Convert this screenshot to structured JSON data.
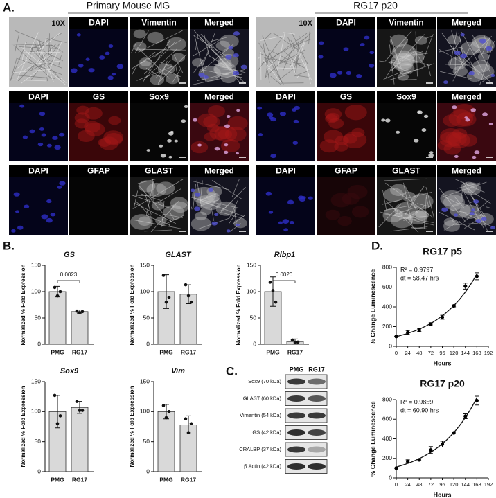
{
  "panel_a": {
    "label": "A.",
    "groups": [
      {
        "title": "Primary Mouse MG",
        "rows": [
          [
            "10X",
            "DAPI",
            "Vimentin",
            "Merged"
          ],
          [
            "DAPI",
            "GS",
            "Sox9",
            "Merged"
          ],
          [
            "DAPI",
            "GFAP",
            "GLAST",
            "Merged"
          ]
        ]
      },
      {
        "title": "RG17 p20",
        "rows": [
          [
            "10X",
            "DAPI",
            "Vimentin",
            "Merged"
          ],
          [
            "DAPI",
            "GS",
            "Sox9",
            "Merged"
          ],
          [
            "DAPI",
            "GFAP",
            "GLAST",
            "Merged"
          ]
        ]
      }
    ]
  },
  "panel_b": {
    "label": "B."
  },
  "western_blot": {
    "label": "C.",
    "columns": [
      "PMG",
      "RG17"
    ],
    "rows": [
      "Sox9 (70 kDa)",
      "GLAST (60 kDa)",
      "Vimentin (54 kDa)",
      "GS (42 kDa)",
      "CRALBP (37 kDa)",
      "β Actin (42 kDa)"
    ]
  },
  "panel_d": {
    "label": "D."
  },
  "chart_data": [
    {
      "type": "bar",
      "title": "GS",
      "ylabel": "Normalized % Fold Expression",
      "categories": [
        "PMG",
        "RG17"
      ],
      "values": [
        100,
        62
      ],
      "errors": [
        10,
        3
      ],
      "points": [
        [
          108,
          92,
          100
        ],
        [
          63,
          60,
          62
        ]
      ],
      "annotation": "0.0023",
      "ylim": [
        0,
        150
      ],
      "yticks": [
        0,
        50,
        100,
        150
      ],
      "color": "#d9d9d9"
    },
    {
      "type": "bar",
      "title": "GLAST",
      "ylabel": "Normalized % Fold Expression",
      "categories": [
        "PMG",
        "RG17"
      ],
      "values": [
        100,
        95
      ],
      "errors": [
        32,
        18
      ],
      "points": [
        [
          131,
          80,
          89
        ],
        [
          113,
          92,
          80
        ]
      ],
      "ylim": [
        0,
        150
      ],
      "yticks": [
        0,
        50,
        100,
        150
      ],
      "color": "#d9d9d9"
    },
    {
      "type": "bar",
      "title": "Rlbp1",
      "ylabel": "Normalized % Fold Expression",
      "categories": [
        "PMG",
        "RG17"
      ],
      "values": [
        100,
        5
      ],
      "errors": [
        28,
        5
      ],
      "points": [
        [
          118,
          102,
          80
        ],
        [
          8,
          3,
          4
        ]
      ],
      "annotation": "0.0020",
      "ylim": [
        0,
        150
      ],
      "yticks": [
        0,
        50,
        100,
        150
      ],
      "color": "#d9d9d9"
    },
    {
      "type": "bar",
      "title": "Sox9",
      "ylabel": "Normalized % Fold Expression",
      "categories": [
        "PMG",
        "RG17"
      ],
      "values": [
        100,
        107
      ],
      "errors": [
        27,
        10
      ],
      "points": [
        [
          127,
          80,
          93
        ],
        [
          117,
          102,
          102
        ]
      ],
      "ylim": [
        0,
        150
      ],
      "yticks": [
        0,
        50,
        100,
        150
      ],
      "color": "#d9d9d9"
    },
    {
      "type": "bar",
      "title": "Vim",
      "ylabel": "Normalized % Fold Expression",
      "categories": [
        "PMG",
        "RG17"
      ],
      "values": [
        100,
        78
      ],
      "errors": [
        12,
        15
      ],
      "points": [
        [
          110,
          90,
          100
        ],
        [
          88,
          65,
          80
        ]
      ],
      "ylim": [
        0,
        150
      ],
      "yticks": [
        0,
        50,
        100,
        150
      ],
      "color": "#d9d9d9"
    },
    {
      "type": "scatter",
      "title": "RG17 p5",
      "annotations": [
        "R² = 0.9797",
        "dt = 58.47 hrs"
      ],
      "xlabel": "Hours",
      "ylabel": "% Change Luminescence",
      "x": [
        0,
        24,
        48,
        72,
        96,
        120,
        144,
        168
      ],
      "values": [
        100,
        140,
        165,
        225,
        295,
        410,
        610,
        710
      ],
      "errors": [
        0,
        20,
        15,
        15,
        20,
        10,
        30,
        35
      ],
      "xlim": [
        0,
        192
      ],
      "xticks": [
        0,
        24,
        48,
        72,
        96,
        120,
        144,
        168,
        192
      ],
      "ylim": [
        0,
        800
      ],
      "yticks": [
        0,
        200,
        400,
        600,
        800
      ],
      "color": "#000000"
    },
    {
      "type": "scatter",
      "title": "RG17 p20",
      "annotations": [
        "R² = 0.9859",
        "dt = 60.90 hrs"
      ],
      "xlabel": "Hours",
      "ylabel": "% Change Luminescence",
      "x": [
        0,
        24,
        48,
        72,
        96,
        120,
        144,
        168
      ],
      "values": [
        100,
        170,
        185,
        285,
        345,
        460,
        630,
        790
      ],
      "errors": [
        0,
        15,
        10,
        35,
        30,
        10,
        25,
        45
      ],
      "xlim": [
        0,
        192
      ],
      "xticks": [
        0,
        24,
        48,
        72,
        96,
        120,
        144,
        168,
        192
      ],
      "ylim": [
        0,
        800
      ],
      "yticks": [
        0,
        200,
        400,
        600,
        800
      ],
      "color": "#000000"
    }
  ]
}
